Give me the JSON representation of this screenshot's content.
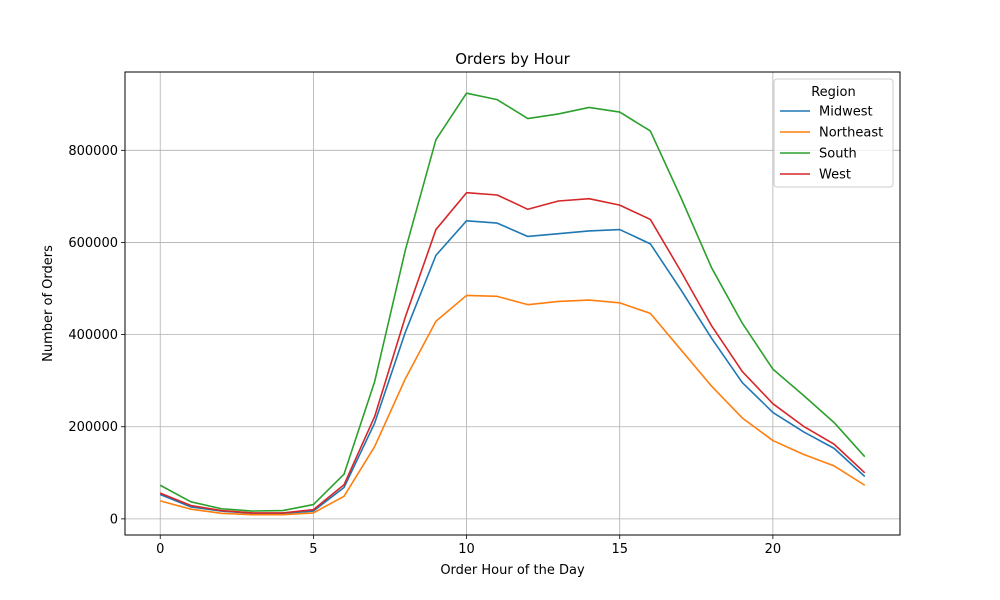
{
  "chart_data": {
    "type": "line",
    "title": "Orders by Hour",
    "xlabel": "Order Hour of the Day",
    "ylabel": "Number of Orders",
    "xlim": [
      -1.15,
      24.15
    ],
    "ylim": [
      -35000,
      970000
    ],
    "xticks": [
      0,
      5,
      10,
      15,
      20
    ],
    "yticks": [
      0,
      200000,
      400000,
      600000,
      800000
    ],
    "xtick_labels": [
      "0",
      "5",
      "10",
      "15",
      "20"
    ],
    "ytick_labels": [
      "0",
      "200000",
      "400000",
      "600000",
      "800000"
    ],
    "grid": true,
    "legend": {
      "title": "Region",
      "placement": "top-right"
    },
    "x": [
      0,
      1,
      2,
      3,
      4,
      5,
      6,
      7,
      8,
      9,
      10,
      11,
      12,
      13,
      14,
      15,
      16,
      17,
      18,
      19,
      20,
      21,
      22,
      23
    ],
    "series": [
      {
        "name": "Midwest",
        "color": "#1f77b4",
        "values": [
          53000,
          26000,
          17000,
          12000,
          12000,
          17000,
          68000,
          208000,
          405000,
          572000,
          647000,
          642000,
          613000,
          619000,
          625000,
          628000,
          597000,
          497000,
          392000,
          296000,
          231000,
          189000,
          153000,
          92000
        ]
      },
      {
        "name": "Northeast",
        "color": "#ff7f0e",
        "values": [
          39000,
          21000,
          12000,
          9000,
          9000,
          13000,
          49000,
          157000,
          304000,
          429000,
          485000,
          483000,
          465000,
          472000,
          475000,
          469000,
          446000,
          367000,
          288000,
          219000,
          170000,
          140000,
          115000,
          73000
        ]
      },
      {
        "name": "South",
        "color": "#2ca02c",
        "values": [
          73000,
          37000,
          22000,
          17000,
          18000,
          31000,
          97000,
          298000,
          583000,
          823000,
          924000,
          910000,
          869000,
          879000,
          893000,
          883000,
          842000,
          697000,
          545000,
          425000,
          325000,
          268000,
          209000,
          135000
        ]
      },
      {
        "name": "West",
        "color": "#d62728",
        "values": [
          56000,
          29000,
          18000,
          13000,
          13000,
          20000,
          74000,
          222000,
          438000,
          628000,
          708000,
          703000,
          672000,
          690000,
          695000,
          681000,
          650000,
          537000,
          419000,
          320000,
          250000,
          201000,
          162000,
          100000
        ]
      }
    ]
  }
}
